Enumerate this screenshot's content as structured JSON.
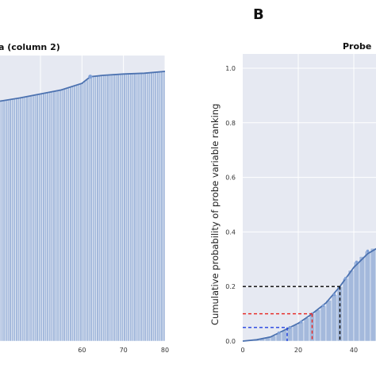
{
  "figure": {
    "panel_letter": "B"
  },
  "chart_data": [
    {
      "type": "bar",
      "title": "a (column 2)",
      "xlabel": "",
      "ylabel": "",
      "xlim": [
        35,
        80
      ],
      "ylim": [
        0,
        1.0
      ],
      "x_ticks": [
        "60",
        "70",
        "80"
      ],
      "y_ticks": [],
      "grid": true,
      "bars": {
        "x_start": 35,
        "x_end": 80,
        "bin_width": 0.5,
        "cumulative_start": 0.89,
        "curve_points": [
          [
            35,
            0.89
          ],
          [
            45,
            0.915
          ],
          [
            55,
            0.945
          ],
          [
            60,
            0.97
          ],
          [
            62,
            0.995
          ],
          [
            65,
            1.0
          ],
          [
            70,
            1.005
          ],
          [
            75,
            1.008
          ],
          [
            80,
            1.015
          ]
        ]
      },
      "kde_curve": [
        [
          35,
          0.89
        ],
        [
          45,
          0.915
        ],
        [
          55,
          0.945
        ],
        [
          60,
          0.97
        ],
        [
          62,
          0.995
        ],
        [
          65,
          1.0
        ],
        [
          70,
          1.005
        ],
        [
          75,
          1.008
        ],
        [
          80,
          1.015
        ]
      ],
      "annotations": [
        {
          "x": 62,
          "y": 0.995,
          "text": ""
        }
      ]
    },
    {
      "type": "bar",
      "title": "Probe",
      "xlabel": "",
      "ylabel": "Cumulative probability of probe variable ranking",
      "xlim": [
        0,
        50
      ],
      "ylim": [
        0.0,
        1.05
      ],
      "x_ticks": [
        "0",
        "20",
        "40"
      ],
      "y_ticks": [
        "0.0",
        "0.2",
        "0.4",
        "0.6",
        "0.8",
        "1.0"
      ],
      "grid": true,
      "bins": {
        "x": [
          1,
          3,
          5,
          7,
          9,
          11,
          13,
          15,
          17,
          19,
          21,
          23,
          25,
          27,
          29,
          31,
          33,
          35,
          37,
          39,
          41,
          43,
          45,
          47,
          49
        ],
        "values": [
          0.0,
          0.0,
          0.005,
          0.01,
          0.015,
          0.02,
          0.03,
          0.04,
          0.05,
          0.06,
          0.07,
          0.085,
          0.1,
          0.115,
          0.13,
          0.15,
          0.17,
          0.2,
          0.23,
          0.26,
          0.29,
          0.31,
          0.33,
          0.34,
          0.35
        ]
      },
      "kde_curve": [
        [
          0,
          0.0
        ],
        [
          5,
          0.005
        ],
        [
          10,
          0.015
        ],
        [
          15,
          0.04
        ],
        [
          20,
          0.065
        ],
        [
          25,
          0.1
        ],
        [
          30,
          0.14
        ],
        [
          35,
          0.2
        ],
        [
          40,
          0.27
        ],
        [
          45,
          0.32
        ],
        [
          50,
          0.35
        ]
      ],
      "reference_lines": [
        {
          "color": "#000000",
          "x": 35,
          "y": 0.2
        },
        {
          "color": "#e8201b",
          "x": 25,
          "y": 0.1
        },
        {
          "color": "#1f3fe0",
          "x": 16,
          "y": 0.05
        }
      ]
    }
  ]
}
